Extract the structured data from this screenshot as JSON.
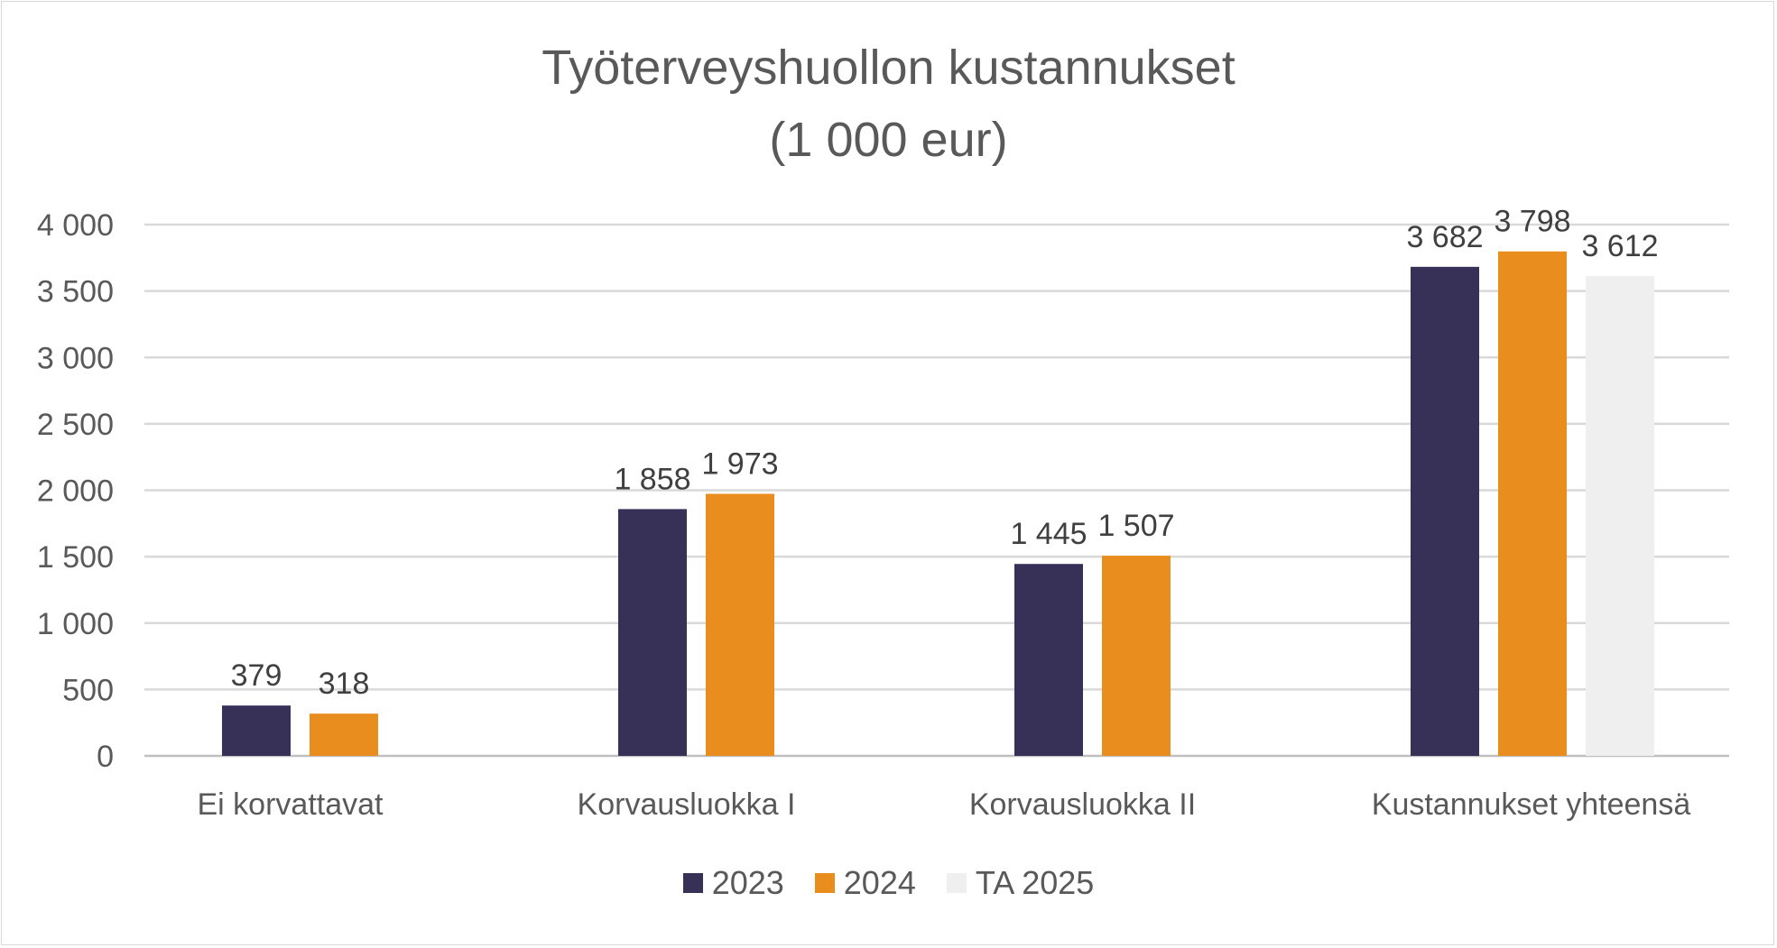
{
  "chart_data": {
    "type": "bar",
    "title": "Työterveyshuollon kustannukset",
    "subtitle": "(1 000 eur)",
    "categories": [
      "Ei korvattavat",
      "Korvausluokka I",
      "Korvausluokka II",
      "Kustannukset yhteensä"
    ],
    "series": [
      {
        "name": "2023",
        "color": "#373057",
        "values": [
          379,
          1858,
          1445,
          3682
        ],
        "labels": [
          "379",
          "1 858",
          "1 445",
          "3 682"
        ]
      },
      {
        "name": "2024",
        "color": "#e98e1e",
        "values": [
          318,
          1973,
          1507,
          3798
        ],
        "labels": [
          "318",
          "1 973",
          "1 507",
          "3 798"
        ]
      },
      {
        "name": "TA 2025",
        "color": "#efefef",
        "values": [
          null,
          null,
          null,
          3612
        ],
        "labels": [
          "",
          "",
          "",
          "3 612"
        ]
      }
    ],
    "ylim": [
      0,
      4000
    ],
    "yticks": [
      0,
      500,
      1000,
      1500,
      2000,
      2500,
      3000,
      3500,
      4000
    ],
    "ytick_labels": [
      "0",
      "500",
      "1 000",
      "1 500",
      "2 000",
      "2 500",
      "3 000",
      "3 500",
      "4 000"
    ],
    "grid": true,
    "legend_position": "bottom"
  }
}
